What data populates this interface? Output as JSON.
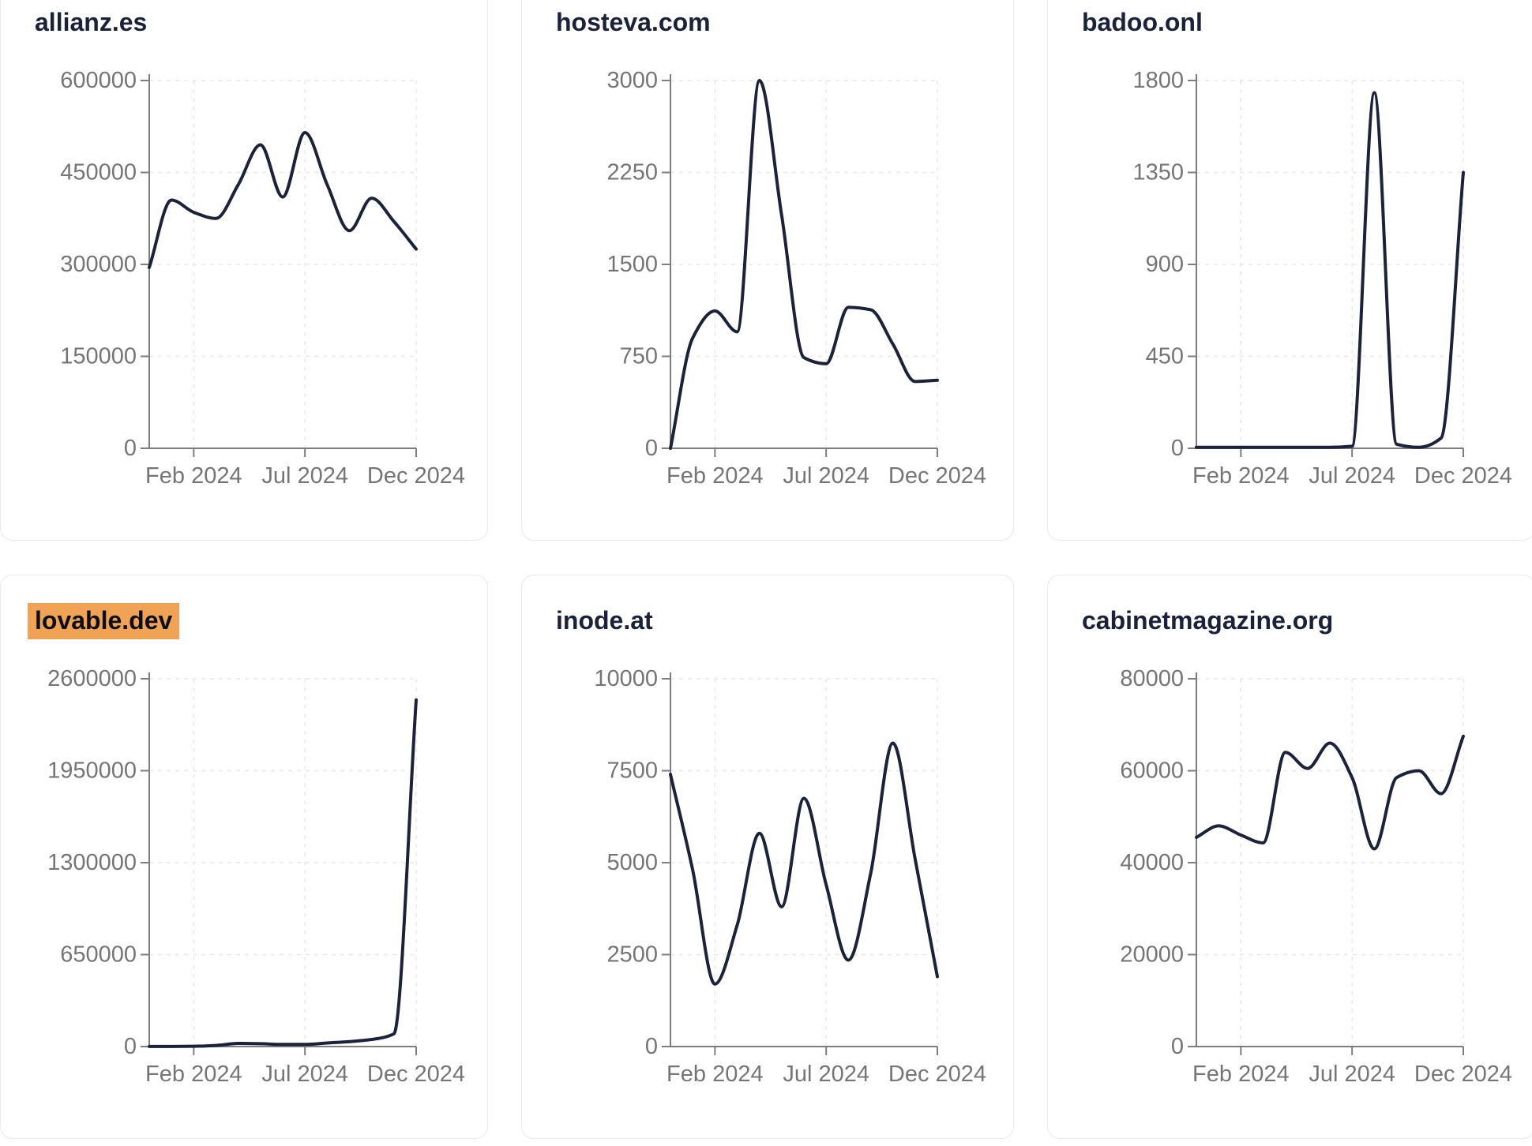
{
  "style": {
    "page_bg": "#ffffff",
    "card_bg": "#ffffff",
    "card_border": "#e6e9ef",
    "title_color": "#1a2138",
    "highlight_bg": "#f0a355",
    "highlight_text": "#0b0f19",
    "line_color": "#1b2239",
    "axis_color": "#7d7d7d",
    "grid_color": "#e8e8e8",
    "tick_label_color": "#757575"
  },
  "chart_data": [
    {
      "type": "line",
      "title": "allianz.es",
      "title_highlight": false,
      "x": [
        "2023-12",
        "2024-01",
        "2024-02",
        "2024-03",
        "2024-04",
        "2024-05",
        "2024-06",
        "2024-07",
        "2024-08",
        "2024-09",
        "2024-10",
        "2024-11",
        "2024-12"
      ],
      "values": [
        295000,
        405000,
        385000,
        375000,
        430000,
        495000,
        410000,
        515000,
        430000,
        355000,
        408000,
        370000,
        325000
      ],
      "y_ticks": [
        0,
        150000,
        300000,
        450000,
        600000
      ],
      "ylim": [
        0,
        600000
      ],
      "x_tick_indices": [
        2,
        7,
        12
      ],
      "x_tick_labels": [
        "Feb 2024",
        "Jul 2024",
        "Dec 2024"
      ],
      "grid": true,
      "legend": false
    },
    {
      "type": "line",
      "title": "hosteva.com",
      "title_highlight": false,
      "x": [
        "2023-12",
        "2024-01",
        "2024-02",
        "2024-03",
        "2024-04",
        "2024-05",
        "2024-06",
        "2024-07",
        "2024-08",
        "2024-09",
        "2024-10",
        "2024-11",
        "2024-12"
      ],
      "values": [
        0,
        900,
        1120,
        950,
        3000,
        1900,
        740,
        690,
        1150,
        1130,
        850,
        545,
        555
      ],
      "y_ticks": [
        0,
        750,
        1500,
        2250,
        3000
      ],
      "ylim": [
        0,
        3000
      ],
      "x_tick_indices": [
        2,
        7,
        12
      ],
      "x_tick_labels": [
        "Feb 2024",
        "Jul 2024",
        "Dec 2024"
      ],
      "grid": true,
      "legend": false
    },
    {
      "type": "line",
      "title": "badoo.onl",
      "title_highlight": false,
      "x": [
        "2023-12",
        "2024-01",
        "2024-02",
        "2024-03",
        "2024-04",
        "2024-05",
        "2024-06",
        "2024-07",
        "2024-08",
        "2024-09",
        "2024-10",
        "2024-11",
        "2024-12"
      ],
      "values": [
        5,
        5,
        5,
        5,
        5,
        5,
        5,
        10,
        1740,
        20,
        5,
        50,
        1350
      ],
      "y_ticks": [
        0,
        450,
        900,
        1350,
        1800
      ],
      "ylim": [
        0,
        1800
      ],
      "x_tick_indices": [
        2,
        7,
        12
      ],
      "x_tick_labels": [
        "Feb 2024",
        "Jul 2024",
        "Dec 2024"
      ],
      "grid": true,
      "legend": false
    },
    {
      "type": "line",
      "title": "lovable.dev",
      "title_highlight": true,
      "x": [
        "2023-12",
        "2024-01",
        "2024-02",
        "2024-03",
        "2024-04",
        "2024-05",
        "2024-06",
        "2024-07",
        "2024-08",
        "2024-09",
        "2024-10",
        "2024-11",
        "2024-12"
      ],
      "values": [
        1000,
        1000,
        2000,
        8000,
        22000,
        20000,
        15000,
        15000,
        25000,
        35000,
        50000,
        90000,
        2450000
      ],
      "y_ticks": [
        0,
        650000,
        1300000,
        1950000,
        2600000
      ],
      "ylim": [
        0,
        2600000
      ],
      "x_tick_indices": [
        2,
        7,
        12
      ],
      "x_tick_labels": [
        "Feb 2024",
        "Jul 2024",
        "Dec 2024"
      ],
      "grid": true,
      "legend": false
    },
    {
      "type": "line",
      "title": "inode.at",
      "title_highlight": false,
      "x": [
        "2023-12",
        "2024-01",
        "2024-02",
        "2024-03",
        "2024-04",
        "2024-05",
        "2024-06",
        "2024-07",
        "2024-08",
        "2024-09",
        "2024-10",
        "2024-11",
        "2024-12"
      ],
      "values": [
        7400,
        4800,
        1700,
        3300,
        5800,
        3800,
        6750,
        4400,
        2350,
        4700,
        8250,
        5100,
        1900
      ],
      "y_ticks": [
        0,
        2500,
        5000,
        7500,
        10000
      ],
      "ylim": [
        0,
        10000
      ],
      "x_tick_indices": [
        2,
        7,
        12
      ],
      "x_tick_labels": [
        "Feb 2024",
        "Jul 2024",
        "Dec 2024"
      ],
      "grid": true,
      "legend": false
    },
    {
      "type": "line",
      "title": "cabinetmagazine.org",
      "title_highlight": false,
      "x": [
        "2023-12",
        "2024-01",
        "2024-02",
        "2024-03",
        "2024-04",
        "2024-05",
        "2024-06",
        "2024-07",
        "2024-08",
        "2024-09",
        "2024-10",
        "2024-11",
        "2024-12"
      ],
      "values": [
        45500,
        48000,
        46000,
        44300,
        64000,
        60500,
        66000,
        58500,
        43000,
        58500,
        60000,
        55000,
        67500
      ],
      "y_ticks": [
        0,
        20000,
        40000,
        60000,
        80000
      ],
      "ylim": [
        0,
        80000
      ],
      "x_tick_indices": [
        2,
        7,
        12
      ],
      "x_tick_labels": [
        "Feb 2024",
        "Jul 2024",
        "Dec 2024"
      ],
      "grid": true,
      "legend": false
    }
  ]
}
